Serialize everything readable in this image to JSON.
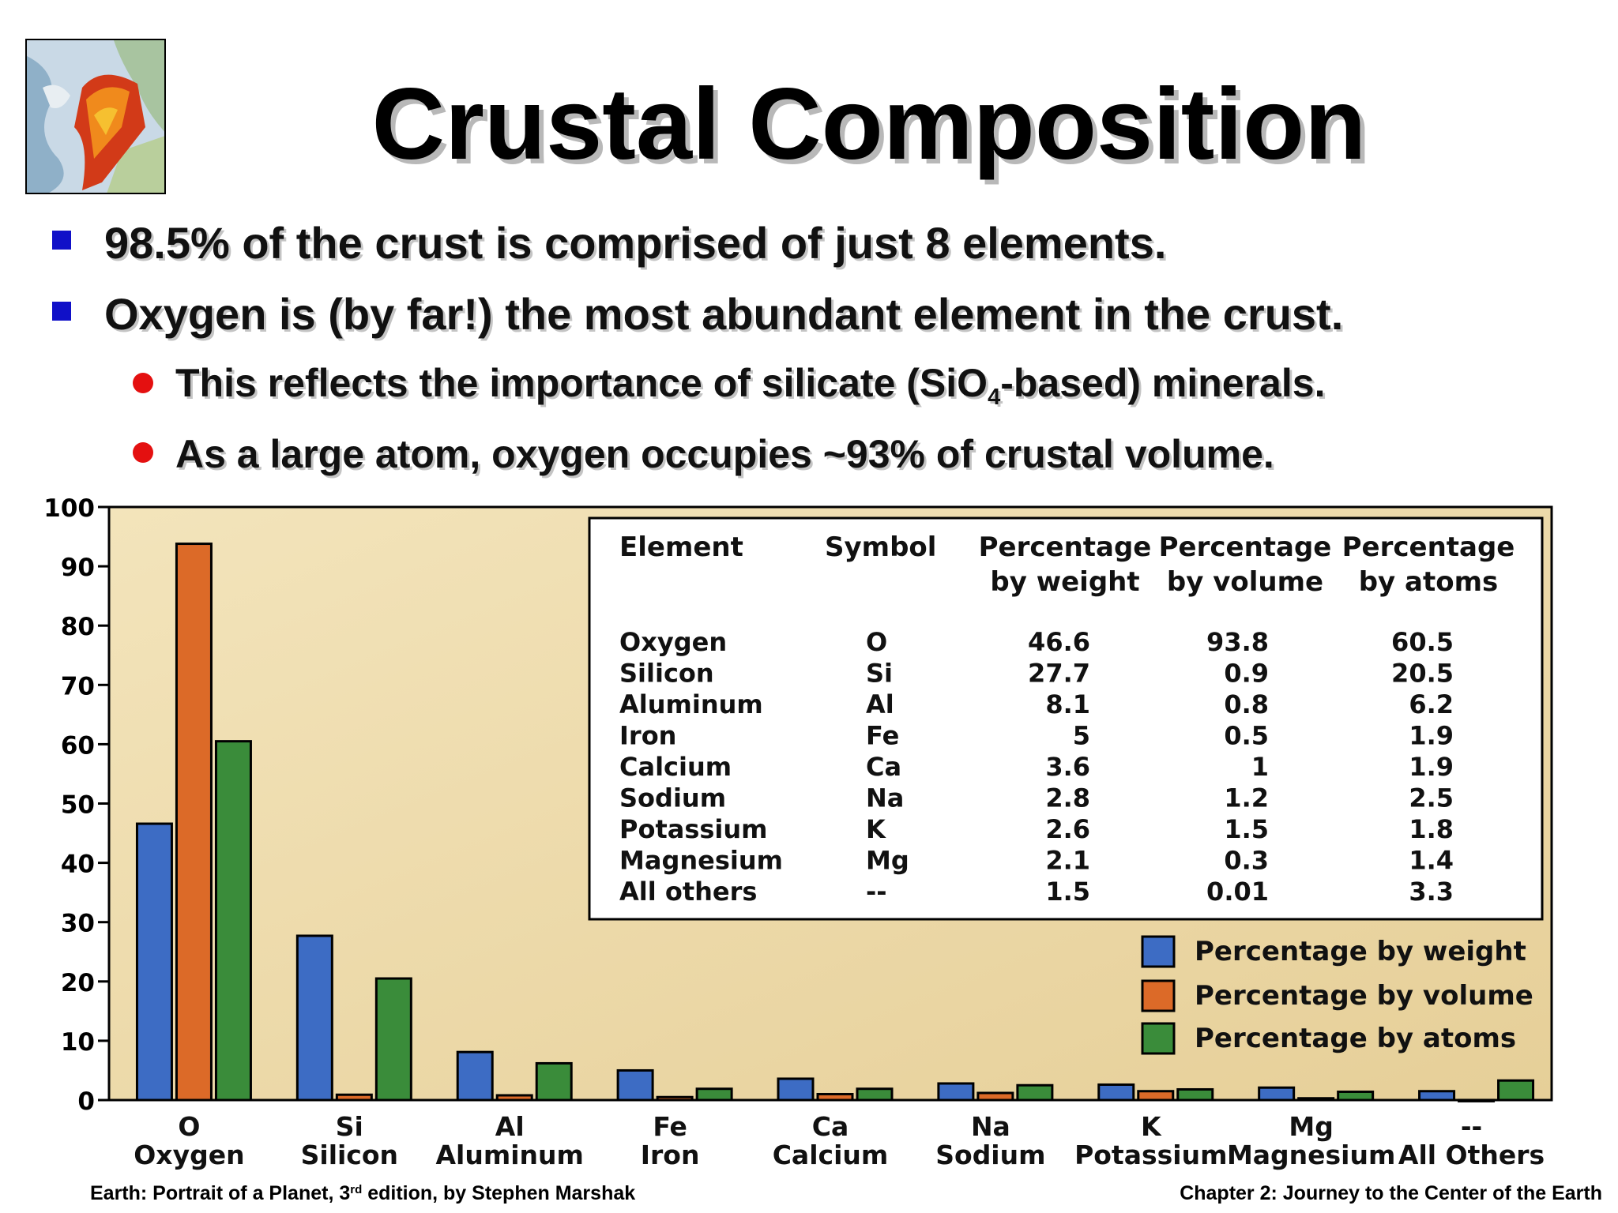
{
  "slide": {
    "title": "Crustal Composition",
    "bullets": [
      {
        "text": "98.5% of the crust is comprised of just 8 elements."
      },
      {
        "text": "Oxygen is (by far!) the most abundant element in the crust."
      }
    ],
    "sub_bullets": [
      {
        "pre": "This reflects the importance of silicate (SiO",
        "sub": "4",
        "post": "-based) minerals."
      },
      {
        "text": "As a large atom, oxygen occupies ~93% of crustal volume."
      }
    ],
    "footer_left": {
      "pre": "Earth: Portrait of a Planet, 3",
      "sup": "rd",
      "post": " edition, by Stephen Marshak"
    },
    "footer_right": "Chapter 2: Journey to the Center of the Earth"
  },
  "colors": {
    "bullet_square": "#1010c8",
    "bullet_dot": "#e41010",
    "chart_bg": "#ecd9a8",
    "weight": "#3d6cc4",
    "volume": "#dc6a28",
    "atoms": "#3a8c3a"
  },
  "chart_data": {
    "type": "bar",
    "categories": [
      "O",
      "Si",
      "Al",
      "Fe",
      "Ca",
      "Na",
      "K",
      "Mg",
      "--"
    ],
    "category_names": [
      "Oxygen",
      "Silicon",
      "Aluminum",
      "Iron",
      "Calcium",
      "Sodium",
      "Potassium",
      "Magnesium",
      "All Others"
    ],
    "series": [
      {
        "name": "Percentage by weight",
        "values": [
          46.6,
          27.7,
          8.1,
          5,
          3.6,
          2.8,
          2.6,
          2.1,
          1.5
        ]
      },
      {
        "name": "Percentage by volume",
        "values": [
          93.8,
          0.9,
          0.8,
          0.5,
          1,
          1.2,
          1.5,
          0.3,
          0.01
        ]
      },
      {
        "name": "Percentage by atoms",
        "values": [
          60.5,
          20.5,
          6.2,
          1.9,
          1.9,
          2.5,
          1.8,
          1.4,
          3.3
        ]
      }
    ],
    "ylim": [
      0,
      100
    ],
    "yticks": [
      0,
      10,
      20,
      30,
      40,
      50,
      60,
      70,
      80,
      90,
      100
    ],
    "legend_position": "bottom-right",
    "table": {
      "headers": [
        [
          "Element"
        ],
        [
          "Symbol"
        ],
        [
          "Percentage",
          "by weight"
        ],
        [
          "Percentage",
          "by volume"
        ],
        [
          "Percentage",
          "by atoms"
        ]
      ],
      "rows": [
        [
          "Oxygen",
          "O",
          "46.6",
          "93.8",
          "60.5"
        ],
        [
          "Silicon",
          "Si",
          "27.7",
          "0.9",
          "20.5"
        ],
        [
          "Aluminum",
          "Al",
          "8.1",
          "0.8",
          "6.2"
        ],
        [
          "Iron",
          "Fe",
          "5",
          "0.5",
          "1.9"
        ],
        [
          "Calcium",
          "Ca",
          "3.6",
          "1",
          "1.9"
        ],
        [
          "Sodium",
          "Na",
          "2.8",
          "1.2",
          "2.5"
        ],
        [
          "Potassium",
          "K",
          "2.6",
          "1.5",
          "1.8"
        ],
        [
          "Magnesium",
          "Mg",
          "2.1",
          "0.3",
          "1.4"
        ],
        [
          "All others",
          "--",
          "1.5",
          "0.01",
          "3.3"
        ]
      ]
    }
  }
}
